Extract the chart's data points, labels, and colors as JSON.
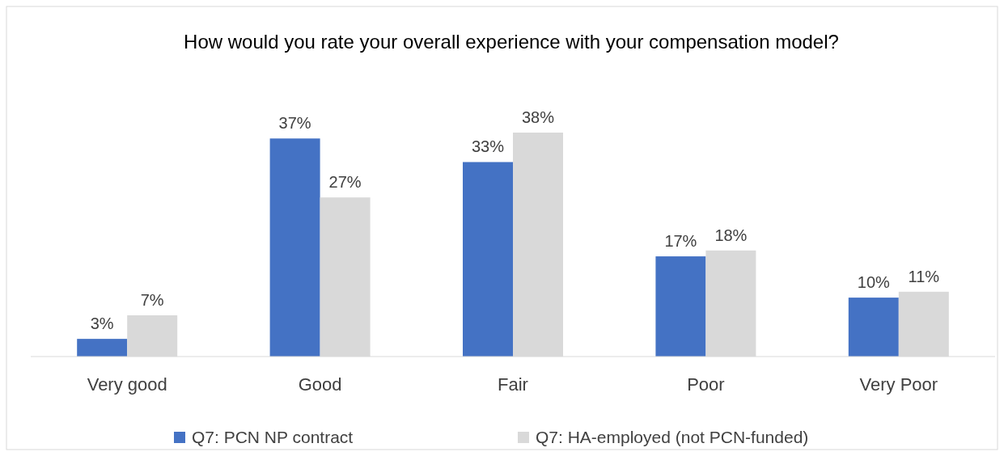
{
  "chart_data": {
    "type": "bar",
    "title": "How would you rate your overall experience with your compensation model?",
    "categories": [
      "Very good",
      "Good",
      "Fair",
      "Poor",
      "Very Poor"
    ],
    "series": [
      {
        "name": "Q7: PCN NP contract",
        "color": "#4472c4",
        "values": [
          3,
          37,
          33,
          17,
          10
        ],
        "value_labels": [
          "3%",
          "37%",
          "33%",
          "17%",
          "10%"
        ]
      },
      {
        "name": "Q7: HA-employed (not PCN-funded)",
        "color": "#d9d9d9",
        "values": [
          7,
          27,
          38,
          18,
          11
        ],
        "value_labels": [
          "7%",
          "27%",
          "38%",
          "18%",
          "11%"
        ]
      }
    ],
    "legend": "bottom"
  }
}
